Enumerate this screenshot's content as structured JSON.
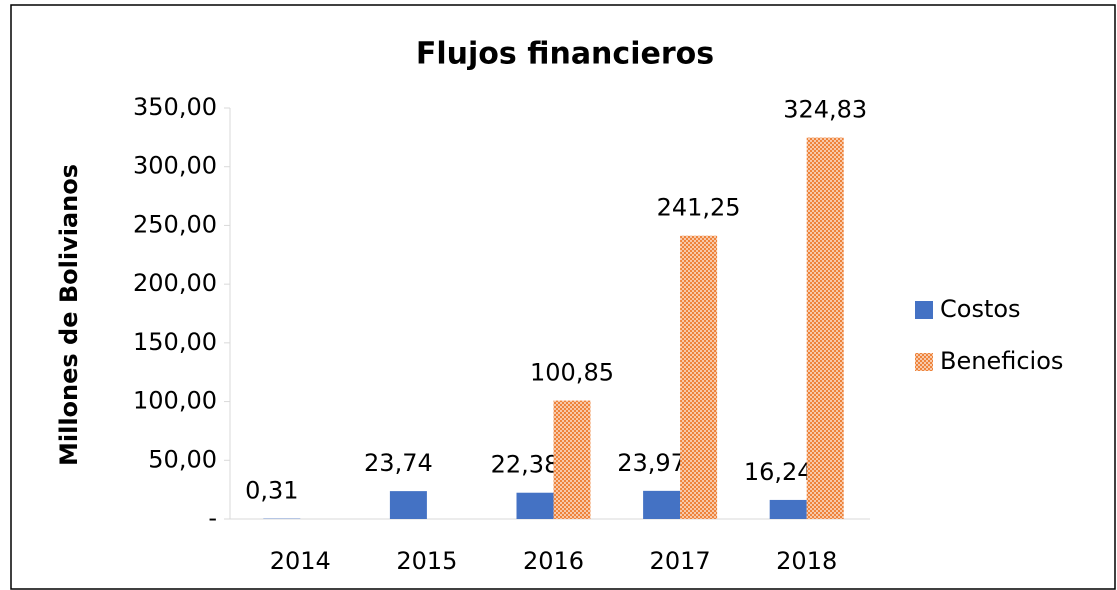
{
  "chart_data": {
    "type": "bar",
    "title": "Flujos financieros",
    "y_label": "Millones de Bolivianos",
    "categories": [
      "2014",
      "2015",
      "2016",
      "2017",
      "2018"
    ],
    "series": [
      {
        "name": "Costos",
        "color": "#4472c4",
        "values": [
          0.31,
          23.74,
          22.38,
          23.97,
          16.24
        ],
        "value_labels": [
          "0,31",
          "23,74",
          "22,38",
          "23,97",
          "16,24"
        ]
      },
      {
        "name": "Beneficios",
        "color": "#ed7d31",
        "values": [
          null,
          null,
          100.85,
          241.25,
          324.83
        ],
        "value_labels": [
          null,
          null,
          "100,85",
          "241,25",
          "324,83"
        ]
      }
    ],
    "ylim": [
      0,
      350
    ],
    "yticks": [
      {
        "value": 0,
        "label": "-"
      },
      {
        "value": 50,
        "label": "50,00"
      },
      {
        "value": 100,
        "label": "100,00"
      },
      {
        "value": 150,
        "label": "150,00"
      },
      {
        "value": 200,
        "label": "200,00"
      },
      {
        "value": 250,
        "label": "250,00"
      },
      {
        "value": 300,
        "label": "300,00"
      },
      {
        "value": 350,
        "label": "350,00"
      }
    ],
    "legend": "right"
  }
}
